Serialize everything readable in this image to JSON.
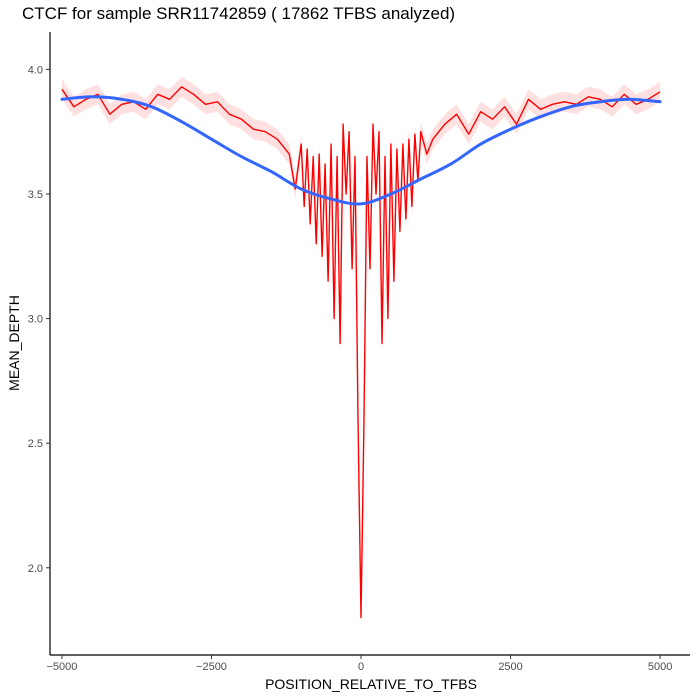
{
  "chart_data": {
    "type": "line",
    "title": "CTCF for sample SRR11742859 ( 17862 TFBS analyzed)",
    "xlabel": "POSITION_RELATIVE_TO_TFBS",
    "ylabel": "MEAN_DEPTH",
    "xlim": [
      -5200,
      5500
    ],
    "ylim": [
      1.65,
      4.15
    ],
    "x_ticks": [
      -5000,
      -2500,
      0,
      2500,
      5000
    ],
    "x_tick_labels": [
      "−5000",
      "−2500",
      "0",
      "2500",
      "5000"
    ],
    "y_ticks": [
      2.0,
      2.5,
      3.0,
      3.5,
      4.0
    ],
    "y_tick_labels": [
      "2.0",
      "2.5",
      "3.0",
      "3.5",
      "4.0"
    ],
    "grid": false,
    "series": [
      {
        "role": "raw",
        "color": "#ff0000",
        "band_color": "#ffcccc",
        "x": [
          -5000,
          -4800,
          -4600,
          -4400,
          -4200,
          -4000,
          -3800,
          -3600,
          -3400,
          -3200,
          -3000,
          -2800,
          -2600,
          -2400,
          -2200,
          -2000,
          -1800,
          -1600,
          -1400,
          -1200,
          -1100,
          -1000,
          -950,
          -900,
          -850,
          -800,
          -750,
          -700,
          -650,
          -600,
          -550,
          -500,
          -450,
          -400,
          -350,
          -300,
          -250,
          -200,
          -150,
          -100,
          -50,
          0,
          50,
          100,
          150,
          200,
          250,
          300,
          350,
          400,
          450,
          500,
          550,
          600,
          650,
          700,
          750,
          800,
          850,
          900,
          950,
          1000,
          1100,
          1200,
          1400,
          1600,
          1800,
          2000,
          2200,
          2400,
          2600,
          2800,
          3000,
          3200,
          3400,
          3600,
          3800,
          4000,
          4200,
          4400,
          4600,
          4800,
          5000
        ],
        "y": [
          3.92,
          3.85,
          3.88,
          3.9,
          3.82,
          3.86,
          3.87,
          3.84,
          3.9,
          3.88,
          3.93,
          3.9,
          3.86,
          3.87,
          3.82,
          3.8,
          3.76,
          3.75,
          3.72,
          3.66,
          3.52,
          3.7,
          3.45,
          3.68,
          3.38,
          3.65,
          3.3,
          3.66,
          3.25,
          3.62,
          3.15,
          3.7,
          3.0,
          3.65,
          2.9,
          3.78,
          3.5,
          3.75,
          3.2,
          3.65,
          2.6,
          1.8,
          2.6,
          3.65,
          3.2,
          3.78,
          3.5,
          3.75,
          2.9,
          3.65,
          3.0,
          3.7,
          3.15,
          3.68,
          3.35,
          3.7,
          3.4,
          3.72,
          3.45,
          3.74,
          3.55,
          3.75,
          3.66,
          3.72,
          3.78,
          3.82,
          3.74,
          3.83,
          3.8,
          3.85,
          3.78,
          3.88,
          3.84,
          3.86,
          3.87,
          3.86,
          3.89,
          3.88,
          3.85,
          3.9,
          3.86,
          3.88,
          3.91
        ]
      },
      {
        "role": "smoothed",
        "color": "#3366ff",
        "x": [
          -5000,
          -4500,
          -4000,
          -3500,
          -3000,
          -2500,
          -2000,
          -1500,
          -1000,
          -500,
          0,
          500,
          1000,
          1500,
          2000,
          2500,
          3000,
          3500,
          4000,
          4500,
          5000
        ],
        "y": [
          3.88,
          3.89,
          3.88,
          3.85,
          3.79,
          3.72,
          3.65,
          3.59,
          3.52,
          3.48,
          3.46,
          3.5,
          3.56,
          3.62,
          3.7,
          3.76,
          3.81,
          3.85,
          3.87,
          3.88,
          3.87
        ]
      }
    ]
  }
}
